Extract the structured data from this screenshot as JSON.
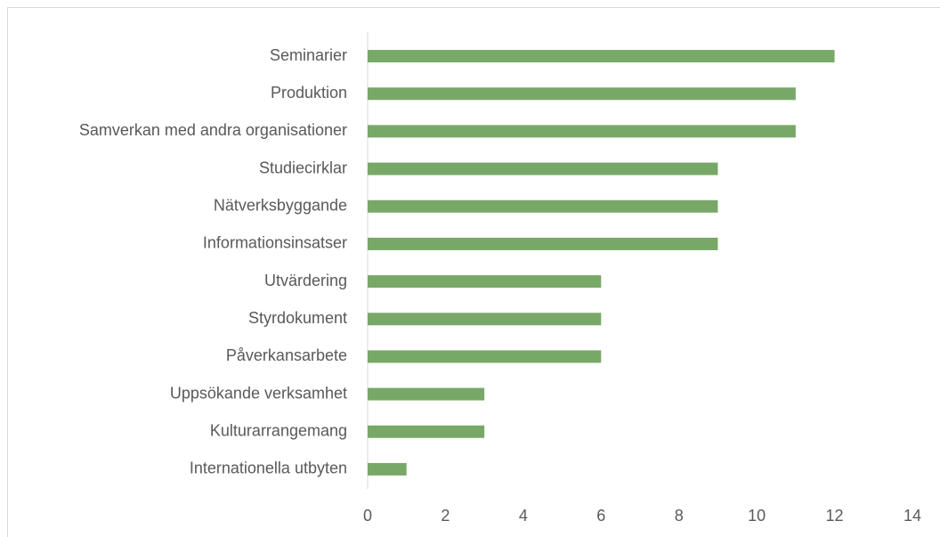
{
  "chart_data": {
    "type": "bar",
    "orientation": "horizontal",
    "categories": [
      "Seminarier",
      "Produktion",
      "Samverkan med andra organisationer",
      "Studiecirklar",
      "Nätverksbyggande",
      "Informationsinsatser",
      "Utvärdering",
      "Styrdokument",
      "Påverkansarbete",
      "Uppsökande verksamhet",
      "Kulturarrangemang",
      "Internationella utbyten"
    ],
    "values": [
      12,
      11,
      11,
      9,
      9,
      9,
      6,
      6,
      6,
      3,
      3,
      1
    ],
    "color": "#78a867",
    "xlim": [
      0,
      14
    ],
    "xticks": [
      0,
      2,
      4,
      6,
      8,
      10,
      12,
      14
    ],
    "grid": false
  }
}
